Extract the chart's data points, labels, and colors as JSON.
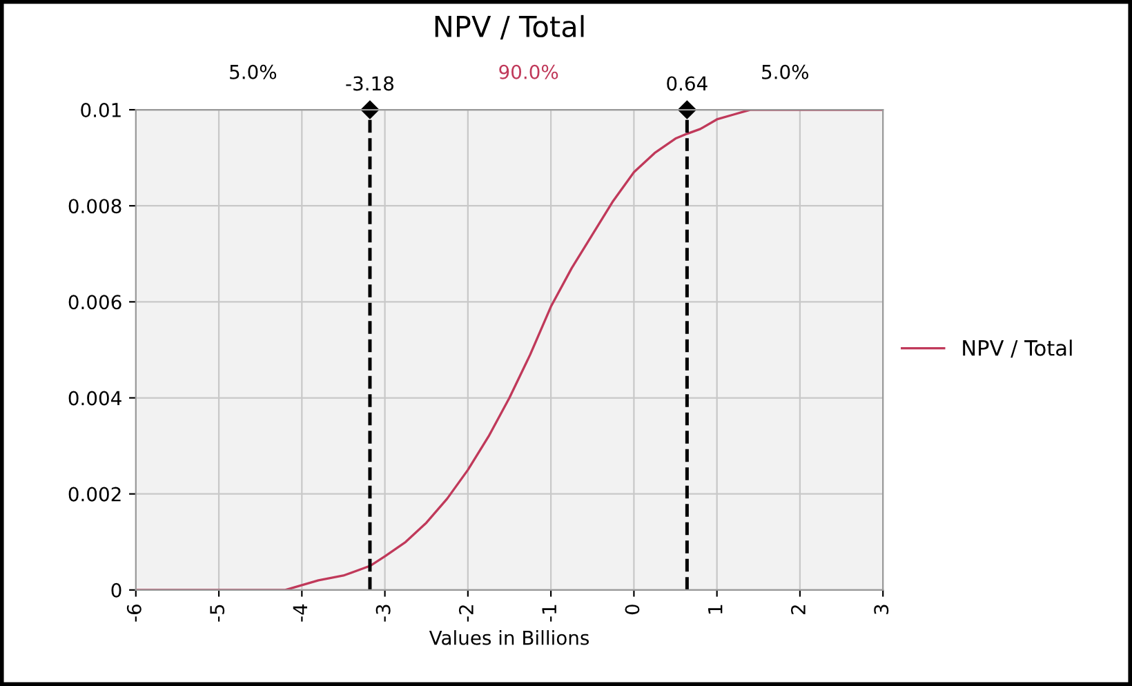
{
  "chart_data": {
    "type": "line",
    "title": "NPV / Total",
    "xlabel": "Values in Billions",
    "x": [
      -6,
      -5,
      -4.5,
      -4.2,
      -4,
      -3.8,
      -3.5,
      -3.18,
      -3,
      -2.75,
      -2.5,
      -2.25,
      -2,
      -1.75,
      -1.5,
      -1.25,
      -1,
      -0.75,
      -0.5,
      -0.25,
      0,
      0.25,
      0.5,
      0.64,
      0.8,
      1,
      1.2,
      1.4,
      2,
      3
    ],
    "series": [
      {
        "name": "NPV / Total",
        "color": "#c0395a",
        "values": [
          0,
          0,
          0,
          0,
          0.0001,
          0.0002,
          0.0003,
          0.0005,
          0.0007,
          0.001,
          0.0014,
          0.0019,
          0.0025,
          0.0032,
          0.004,
          0.0049,
          0.0059,
          0.0067,
          0.0074,
          0.0081,
          0.0087,
          0.0091,
          0.0094,
          0.0095,
          0.0096,
          0.0098,
          0.0099,
          0.01,
          0.01,
          0.01
        ]
      }
    ],
    "xlim": [
      -6,
      3
    ],
    "xticks": [
      -6,
      -5,
      -4,
      -3,
      -2,
      -1,
      0,
      1,
      2,
      3
    ],
    "ylim": [
      0,
      0.01
    ],
    "yticks": [
      0,
      0.002,
      0.004,
      0.006,
      0.008,
      0.01
    ],
    "ref_lines": [
      {
        "axis": "x",
        "value": -3.18,
        "label": "-3.18",
        "color": "#000000",
        "line_style": "dashed"
      },
      {
        "axis": "x",
        "value": 0.64,
        "label": "0.64",
        "color": "#000000",
        "line_style": "dashed"
      }
    ],
    "annotations": [
      "5.0%",
      "90.0%",
      "5.0%"
    ],
    "grid": true,
    "legend": "right",
    "marker": "none",
    "line_style": "solid"
  }
}
